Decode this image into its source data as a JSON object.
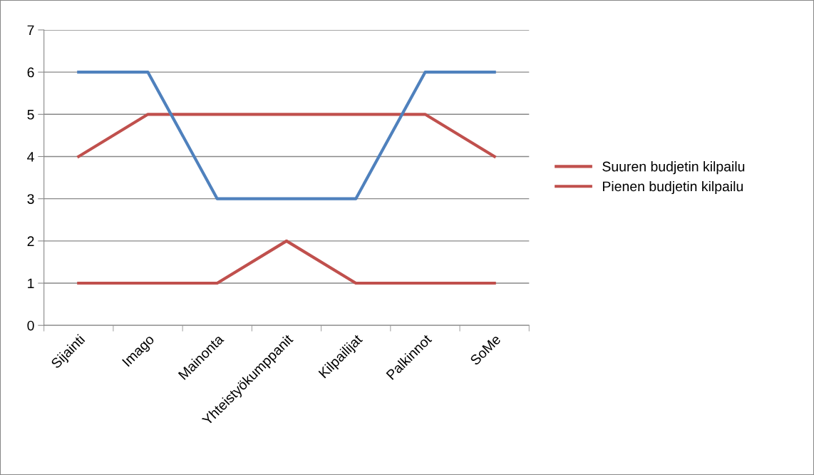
{
  "chart_data": {
    "type": "line",
    "categories": [
      "Sijainti",
      "Imago",
      "Mainonta",
      "Yhteistyökumppanit",
      "Kilpailijat",
      "Palkinnot",
      "SoMe"
    ],
    "series": [
      {
        "name": "Suuren budjetin kilpailu",
        "color": "#c0504d",
        "values": [
          4,
          5,
          5,
          5,
          5,
          5,
          4
        ]
      },
      {
        "color": "#4f81bd",
        "values": [
          6,
          6,
          3,
          3,
          3,
          6,
          6
        ]
      },
      {
        "name": "Pienen budjetin kilpailu",
        "color": "#c0504d",
        "values": [
          1,
          1,
          1,
          2,
          1,
          1,
          1
        ]
      }
    ],
    "ylim": [
      0,
      7
    ],
    "yticks": [
      0,
      1,
      2,
      3,
      4,
      5,
      6,
      7
    ],
    "grid": "y",
    "legend": "right",
    "marker": "none",
    "line_style": "solid"
  }
}
